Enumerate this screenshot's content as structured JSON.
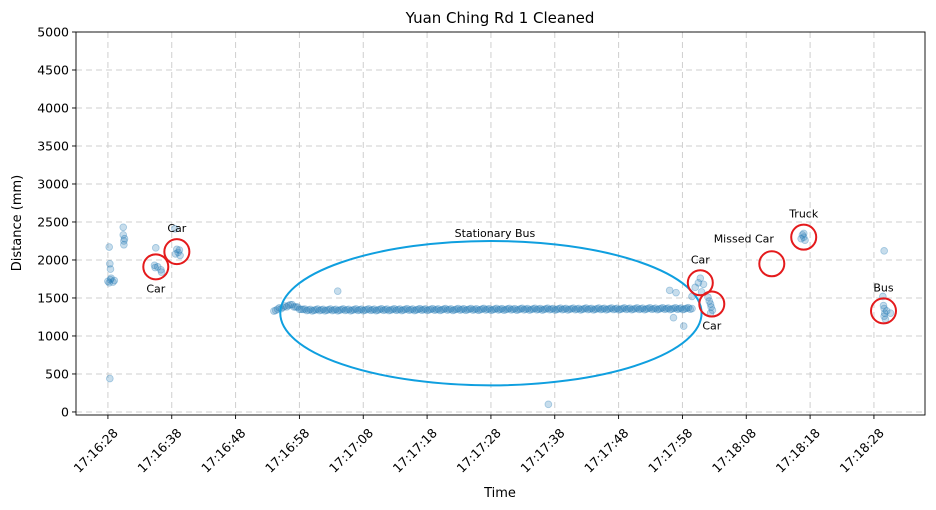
{
  "chart_data": {
    "type": "scatter",
    "title": "Yuan Ching Rd 1 Cleaned",
    "xlabel": "Time",
    "ylabel": "Distance (mm)",
    "ylim": [
      0,
      5000
    ],
    "xlim": [
      "17:16:23",
      "17:18:36"
    ],
    "grid": true,
    "colors": {
      "points": "#1f77b4",
      "highlight_circle": "#e41a1c",
      "ellipse": "#0f9fdf"
    },
    "x_tick_labels": [
      "17:16:28",
      "17:16:38",
      "17:16:48",
      "17:16:58",
      "17:17:08",
      "17:17:18",
      "17:17:28",
      "17:17:38",
      "17:17:48",
      "17:17:58",
      "17:18:08",
      "17:18:18",
      "17:18:28"
    ],
    "y_ticks": [
      0,
      500,
      1000,
      1500,
      2000,
      2500,
      3000,
      3500,
      4000,
      4500,
      5000
    ],
    "points": [
      {
        "t": "17:16:28.0",
        "d": 1720
      },
      {
        "t": "17:16:28.2",
        "d": 1700
      },
      {
        "t": "17:16:28.4",
        "d": 1740
      },
      {
        "t": "17:16:28.5",
        "d": 1760
      },
      {
        "t": "17:16:28.8",
        "d": 1710
      },
      {
        "t": "17:16:29.0",
        "d": 1730
      },
      {
        "t": "17:16:28.2",
        "d": 2170
      },
      {
        "t": "17:16:28.3",
        "d": 1950
      },
      {
        "t": "17:16:28.4",
        "d": 1880
      },
      {
        "t": "17:16:28.3",
        "d": 440
      },
      {
        "t": "17:16:30.4",
        "d": 2430
      },
      {
        "t": "17:16:30.4",
        "d": 2330
      },
      {
        "t": "17:16:30.5",
        "d": 2250
      },
      {
        "t": "17:16:30.5",
        "d": 2200
      },
      {
        "t": "17:16:30.6",
        "d": 2280
      },
      {
        "t": "17:16:35.3",
        "d": 1930
      },
      {
        "t": "17:16:35.4",
        "d": 1900
      },
      {
        "t": "17:16:35.5",
        "d": 2160
      },
      {
        "t": "17:16:35.8",
        "d": 1910
      },
      {
        "t": "17:16:36.3",
        "d": 1870
      },
      {
        "t": "17:16:36.4",
        "d": 1840
      },
      {
        "t": "17:16:38.6",
        "d": 2080
      },
      {
        "t": "17:16:38.8",
        "d": 2140
      },
      {
        "t": "17:16:39.0",
        "d": 2100
      },
      {
        "t": "17:16:39.2",
        "d": 2130
      },
      {
        "t": "17:16:39.3",
        "d": 2060
      },
      {
        "t": "17:16:38.5",
        "d": 2410
      },
      {
        "t": "17:17:04.0",
        "d": 1590
      },
      {
        "t": "17:17:37.0",
        "d": 100
      },
      {
        "t": "17:17:56.0",
        "d": 1600
      },
      {
        "t": "17:17:57.0",
        "d": 1570
      },
      {
        "t": "17:17:56.6",
        "d": 1240
      },
      {
        "t": "17:17:58.2",
        "d": 1130
      },
      {
        "t": "17:17:59.5",
        "d": 1520
      },
      {
        "t": "17:18:00.0",
        "d": 1640
      },
      {
        "t": "17:18:00.5",
        "d": 1700
      },
      {
        "t": "17:18:00.8",
        "d": 1760
      },
      {
        "t": "17:18:01.0",
        "d": 1580
      },
      {
        "t": "17:18:01.3",
        "d": 1680
      },
      {
        "t": "17:18:02.0",
        "d": 1510
      },
      {
        "t": "17:18:02.2",
        "d": 1460
      },
      {
        "t": "17:18:02.4",
        "d": 1420
      },
      {
        "t": "17:18:02.5",
        "d": 1380
      },
      {
        "t": "17:18:02.7",
        "d": 1340
      },
      {
        "t": "17:18:02.4",
        "d": 1300
      },
      {
        "t": "17:18:16.6",
        "d": 2280
      },
      {
        "t": "17:18:16.8",
        "d": 2330
      },
      {
        "t": "17:18:17.0",
        "d": 2300
      },
      {
        "t": "17:18:17.2",
        "d": 2260
      },
      {
        "t": "17:18:17.0",
        "d": 2350
      },
      {
        "t": "17:18:29.4",
        "d": 1520
      },
      {
        "t": "17:18:29.5",
        "d": 1400
      },
      {
        "t": "17:18:29.6",
        "d": 1360
      },
      {
        "t": "17:18:29.7",
        "d": 1300
      },
      {
        "t": "17:18:29.6",
        "d": 1260
      },
      {
        "t": "17:18:29.8",
        "d": 1220
      },
      {
        "t": "17:18:30.0",
        "d": 1330
      },
      {
        "t": "17:18:30.6",
        "d": 1300
      },
      {
        "t": "17:18:29.6",
        "d": 2120
      }
    ],
    "dense_runs": [
      {
        "start": "17:16:54.0",
        "end": "17:17:59.5",
        "d_start": 1340,
        "d_end": 1360,
        "hump_at": "17:16:56.5",
        "hump_d": 1410,
        "count": 230
      }
    ],
    "annotations": [
      {
        "label": "Stationary Bus",
        "shape": "ellipse",
        "t_center": "17:17:28",
        "d_center": 1300,
        "t_half": "33s",
        "d_half": 950
      },
      {
        "label": "Car",
        "shape": "circle",
        "t_center": "17:16:38.8",
        "d_center": 2110,
        "label_pos": "above"
      },
      {
        "label": "Car",
        "shape": "circle",
        "t_center": "17:16:35.5",
        "d_center": 1910,
        "label_pos": "below"
      },
      {
        "label": "Car",
        "shape": "circle",
        "t_center": "17:18:00.8",
        "d_center": 1700,
        "label_pos": "above"
      },
      {
        "label": "Car",
        "shape": "circle",
        "t_center": "17:18:02.6",
        "d_center": 1420,
        "label_pos": "below"
      },
      {
        "label": "Missed Car",
        "shape": "circle",
        "t_center": "17:18:12.0",
        "d_center": 1950,
        "label_pos": "above-left"
      },
      {
        "label": "Truck",
        "shape": "circle",
        "t_center": "17:18:17.0",
        "d_center": 2300,
        "label_pos": "above"
      },
      {
        "label": "Bus",
        "shape": "circle",
        "t_center": "17:18:29.5",
        "d_center": 1330,
        "label_pos": "above"
      }
    ]
  }
}
